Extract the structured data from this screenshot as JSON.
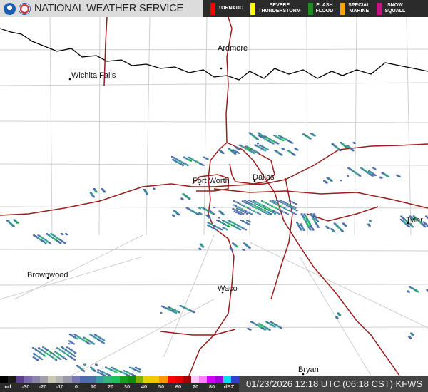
{
  "header": {
    "title": "NATIONAL WEATHER SERVICE",
    "logos": [
      "noaa-logo",
      "nws-logo"
    ],
    "warnings": [
      {
        "label": "TORNADO",
        "color": "#ff0000"
      },
      {
        "label": "SEVERE\nTHUNDERSTORM",
        "color": "#ffff00"
      },
      {
        "label": "FLASH\nFLOOD",
        "color": "#228b22"
      },
      {
        "label": "SPECIAL\nMARINE",
        "color": "#ffa500"
      },
      {
        "label": "SNOW\nSQUALL",
        "color": "#c71585"
      }
    ]
  },
  "map": {
    "cities": [
      "Ardmore",
      "Wichita Falls",
      "Fort Worth",
      "Dallas",
      "Tyler",
      "Brownwood",
      "Waco",
      "Bryan"
    ],
    "colors": {
      "highway": "#9b1c1c",
      "state_border": "#000000",
      "county_border": "#cfcfcf"
    }
  },
  "legend": {
    "ticks": [
      "nd",
      "-30",
      "-20",
      "-10",
      "0",
      "10",
      "20",
      "30",
      "40",
      "50",
      "60",
      "70",
      "80",
      "dBZ"
    ],
    "colors": [
      "#000000",
      "#1a1a1a",
      "#5a3f8a",
      "#7a68a8",
      "#8c84a8",
      "#a0a0a8",
      "#c8c8b0",
      "#b4b4b4",
      "#9898a8",
      "#7a78b0",
      "#4f6bae",
      "#4a70a8",
      "#3a9aa0",
      "#33b47a",
      "#1cc05a",
      "#16a020",
      "#108c10",
      "#80b000",
      "#e8d000",
      "#f0c800",
      "#ff9800",
      "#ff0000",
      "#e00000",
      "#a00000",
      "#ffc8ff",
      "#ff80ff",
      "#d000ff",
      "#a000e0",
      "#00e0f0",
      "#3040d0"
    ]
  },
  "timestamp": "01/23/2026 12:18 UTC (06:18 CST) KFWS"
}
